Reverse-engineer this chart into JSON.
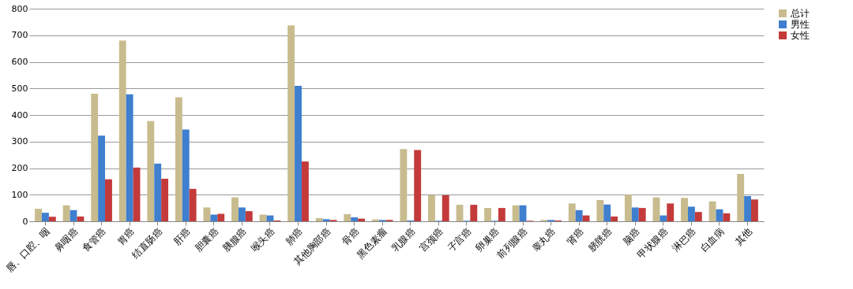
{
  "chart_data": {
    "type": "bar",
    "categories": [
      "唇、口腔、咽",
      "鼻咽癌",
      "食管癌",
      "胃癌",
      "结直肠癌",
      "肝癌",
      "胆囊癌",
      "胰腺癌",
      "喉头癌",
      "肺癌",
      "其他胸部癌",
      "骨癌",
      "黑色素瘤",
      "乳腺癌",
      "宫颈癌",
      "子宫癌",
      "卵巢癌",
      "前列腺癌",
      "睾丸癌",
      "肾癌",
      "膀胱癌",
      "脑癌",
      "甲状腺癌",
      "淋巴癌",
      "白血病",
      "其他"
    ],
    "series": [
      {
        "name": "总计",
        "color": "#c8bc8e",
        "values": [
          47,
          60,
          480,
          680,
          377,
          467,
          52,
          90,
          25,
          737,
          12,
          27,
          7,
          272,
          98,
          62,
          50,
          60,
          5,
          67,
          80,
          100,
          90,
          88,
          75,
          178
        ]
      },
      {
        "name": "男性",
        "color": "#3f7fd0",
        "values": [
          32,
          42,
          322,
          478,
          217,
          345,
          25,
          52,
          22,
          510,
          8,
          15,
          5,
          3,
          2,
          2,
          2,
          60,
          5,
          42,
          63,
          52,
          22,
          55,
          45,
          95
        ]
      },
      {
        "name": "女性",
        "color": "#c43a3a",
        "values": [
          17,
          18,
          158,
          202,
          160,
          122,
          28,
          38,
          3,
          225,
          5,
          10,
          5,
          268,
          98,
          62,
          50,
          2,
          3,
          22,
          18,
          50,
          67,
          35,
          30,
          82
        ]
      }
    ],
    "ylim": [
      0,
      800
    ],
    "yticks": [
      0,
      100,
      200,
      300,
      400,
      500,
      600,
      700,
      800
    ],
    "grid": "y",
    "legend": "right"
  }
}
